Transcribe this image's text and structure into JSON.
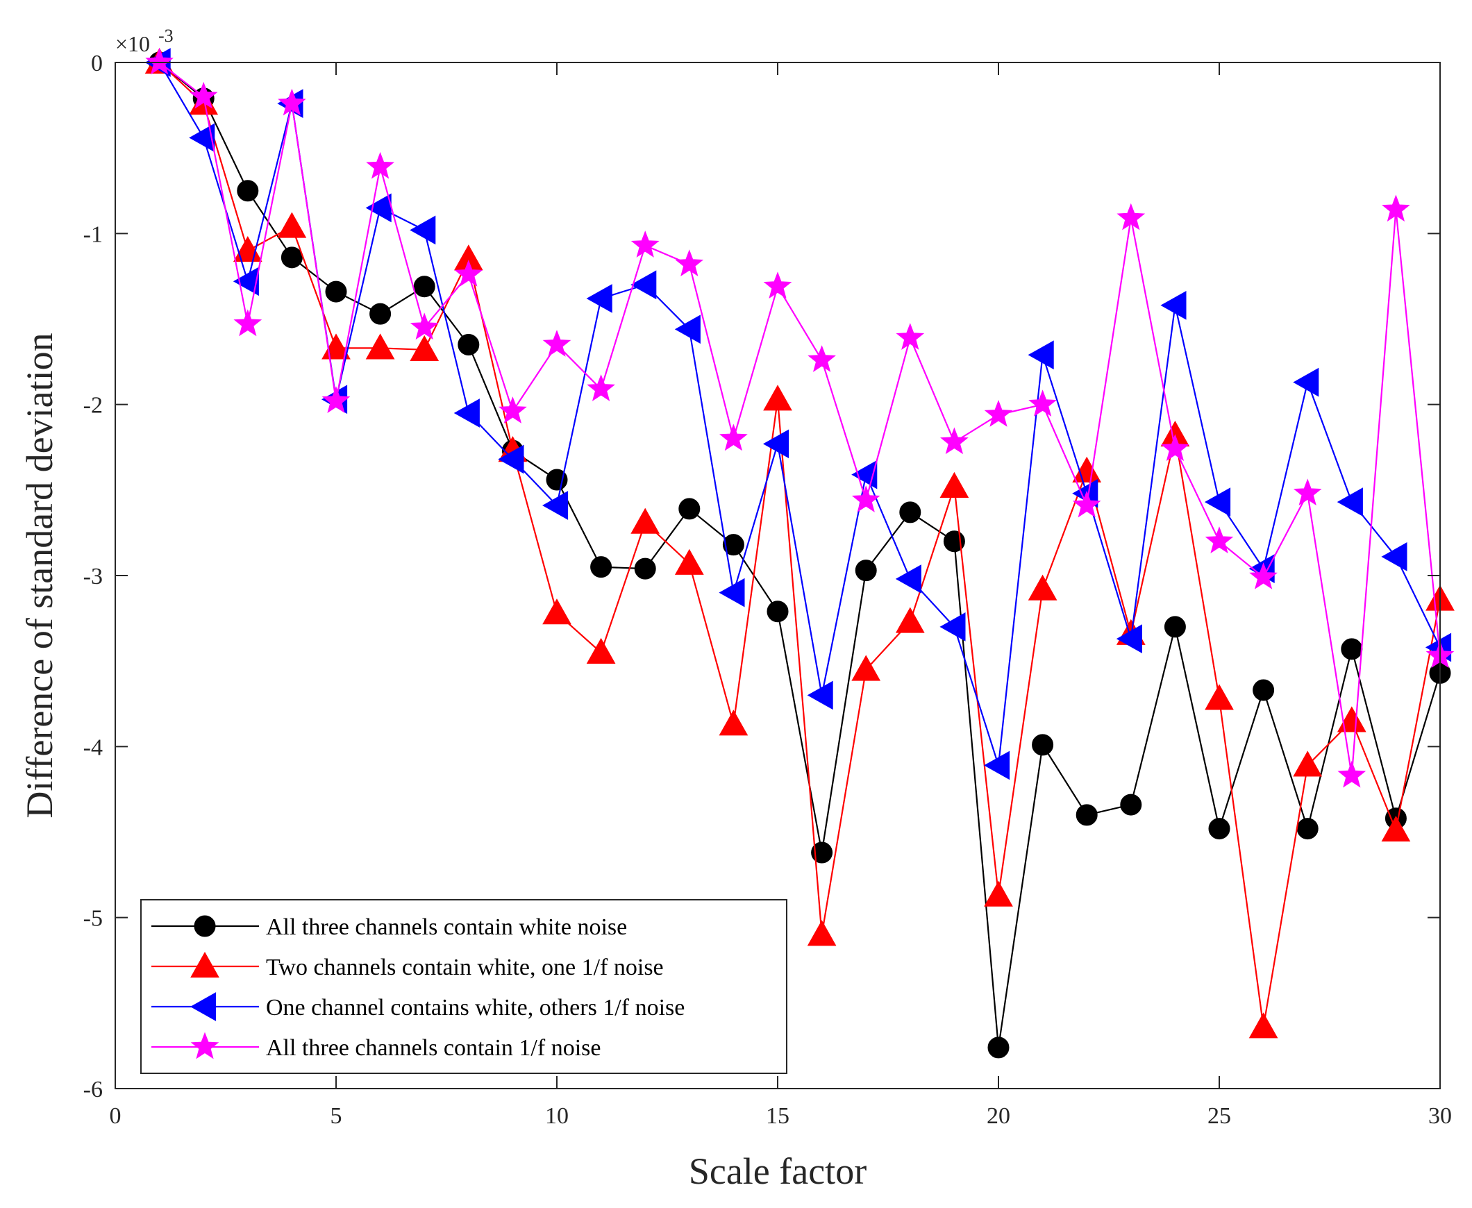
{
  "chart_data": {
    "type": "line",
    "title": "",
    "xlabel": "Scale factor",
    "ylabel": "Difference of standard deviation",
    "y_exponent_base": "×10",
    "y_exponent_power": "-3",
    "xlim": [
      0,
      30
    ],
    "ylim": [
      -6,
      0
    ],
    "xticks": [
      0,
      5,
      10,
      15,
      20,
      25,
      30
    ],
    "yticks": [
      0,
      -1,
      -2,
      -3,
      -4,
      -5,
      -6
    ],
    "legend_position": "bottom-left",
    "x": [
      1,
      2,
      3,
      4,
      5,
      6,
      7,
      8,
      9,
      10,
      11,
      12,
      13,
      14,
      15,
      16,
      17,
      18,
      19,
      20,
      21,
      22,
      23,
      24,
      25,
      26,
      27,
      28,
      29,
      30
    ],
    "series": [
      {
        "name": "All three channels contain white noise",
        "color": "#000000",
        "marker": "circle",
        "values": [
          0,
          -0.21,
          -0.75,
          -1.14,
          -1.34,
          -1.47,
          -1.31,
          -1.65,
          -2.27,
          -2.44,
          -2.95,
          -2.96,
          -2.61,
          -2.82,
          -3.21,
          -4.62,
          -2.97,
          -2.63,
          -2.8,
          -5.76,
          -3.99,
          -4.4,
          -4.34,
          -3.3,
          -4.48,
          -3.67,
          -4.48,
          -3.43,
          -4.42,
          -3.57
        ]
      },
      {
        "name": "Two channels contain white, one 1/f noise",
        "color": "#ff0000",
        "marker": "triangle-up",
        "values": [
          0,
          -0.24,
          -1.1,
          -0.96,
          -1.67,
          -1.67,
          -1.68,
          -1.15,
          -2.27,
          -3.22,
          -3.45,
          -2.69,
          -2.93,
          -3.87,
          -1.97,
          -5.1,
          -3.55,
          -3.27,
          -2.48,
          -4.87,
          -3.08,
          -2.39,
          -3.34,
          -2.18,
          -3.72,
          -5.64,
          -4.11,
          -3.85,
          -4.49,
          -3.14
        ]
      },
      {
        "name": "One channel contains white, others 1/f noise",
        "color": "#0000ff",
        "marker": "triangle-left",
        "values": [
          0,
          -0.44,
          -1.28,
          -0.24,
          -1.97,
          -0.85,
          -0.98,
          -2.05,
          -2.32,
          -2.59,
          -1.38,
          -1.3,
          -1.56,
          -3.1,
          -2.23,
          -3.7,
          -2.41,
          -3.02,
          -3.3,
          -4.11,
          -1.71,
          -2.52,
          -3.37,
          -1.42,
          -2.57,
          -2.96,
          -1.87,
          -2.57,
          -2.89,
          -3.42
        ]
      },
      {
        "name": "All three channels contain 1/f noise",
        "color": "#ff00ff",
        "marker": "star",
        "values": [
          0,
          -0.2,
          -1.53,
          -0.24,
          -1.98,
          -0.61,
          -1.55,
          -1.24,
          -2.04,
          -1.65,
          -1.91,
          -1.07,
          -1.18,
          -2.2,
          -1.31,
          -1.74,
          -2.56,
          -1.61,
          -2.22,
          -2.06,
          -2.0,
          -2.59,
          -0.91,
          -2.26,
          -2.8,
          -3.01,
          -2.52,
          -4.17,
          -0.86,
          -3.47
        ]
      }
    ]
  }
}
